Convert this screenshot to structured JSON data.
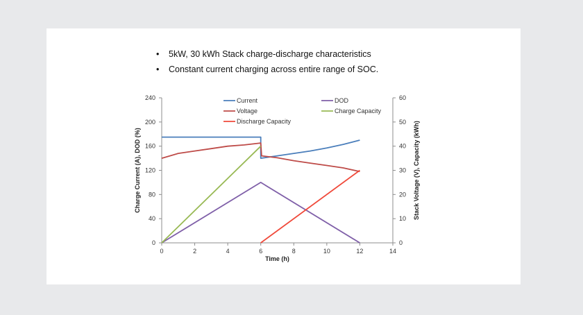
{
  "slide": {
    "bullets": [
      "5kW, 30 kWh Stack charge-discharge characteristics",
      "Constant current charging across entire range of SOC."
    ]
  },
  "chart_data": {
    "type": "line",
    "xlabel": "Time (h)",
    "ylabel_left": "Charge Current (A), DOD (%)",
    "ylabel_right": "Stack Voltage (V), Capacity (kWh)",
    "xlim": [
      0,
      14
    ],
    "ylim_left": [
      0,
      240
    ],
    "ylim_right": [
      0,
      60
    ],
    "x_ticks": [
      0,
      2,
      4,
      6,
      8,
      10,
      12,
      14
    ],
    "y_left_ticks": [
      0,
      40,
      80,
      120,
      160,
      200,
      240
    ],
    "y_right_ticks": [
      0,
      10,
      20,
      30,
      40,
      50,
      60
    ],
    "grid": false,
    "legend_position": "top-center",
    "series": [
      {
        "name": "Current",
        "axis": "left",
        "color": "#4a7ebb",
        "points": [
          [
            0,
            175
          ],
          [
            6,
            175
          ],
          [
            6,
            140
          ],
          [
            7,
            144
          ],
          [
            8,
            148
          ],
          [
            9,
            152
          ],
          [
            10,
            157
          ],
          [
            11,
            163
          ],
          [
            12,
            170
          ]
        ]
      },
      {
        "name": "DOD",
        "axis": "left",
        "color": "#7f5fa8",
        "points": [
          [
            0,
            0
          ],
          [
            6,
            100
          ],
          [
            12,
            0
          ]
        ]
      },
      {
        "name": "Voltage",
        "axis": "right",
        "color": "#be4b48",
        "points": [
          [
            0,
            35
          ],
          [
            1,
            37
          ],
          [
            2,
            38
          ],
          [
            3,
            39
          ],
          [
            4,
            40
          ],
          [
            5,
            40.5
          ],
          [
            6,
            41.3
          ],
          [
            6.05,
            36
          ],
          [
            7,
            35.2
          ],
          [
            8,
            34
          ],
          [
            9,
            33
          ],
          [
            10,
            32
          ],
          [
            11,
            31
          ],
          [
            12,
            29.5
          ]
        ]
      },
      {
        "name": "Charge Capacity",
        "axis": "right",
        "color": "#98b954",
        "points": [
          [
            0,
            0
          ],
          [
            6,
            40
          ]
        ]
      },
      {
        "name": "Discharge Capacity",
        "axis": "right",
        "color": "#f0493a",
        "points": [
          [
            6,
            0
          ],
          [
            12,
            30
          ]
        ]
      }
    ]
  }
}
